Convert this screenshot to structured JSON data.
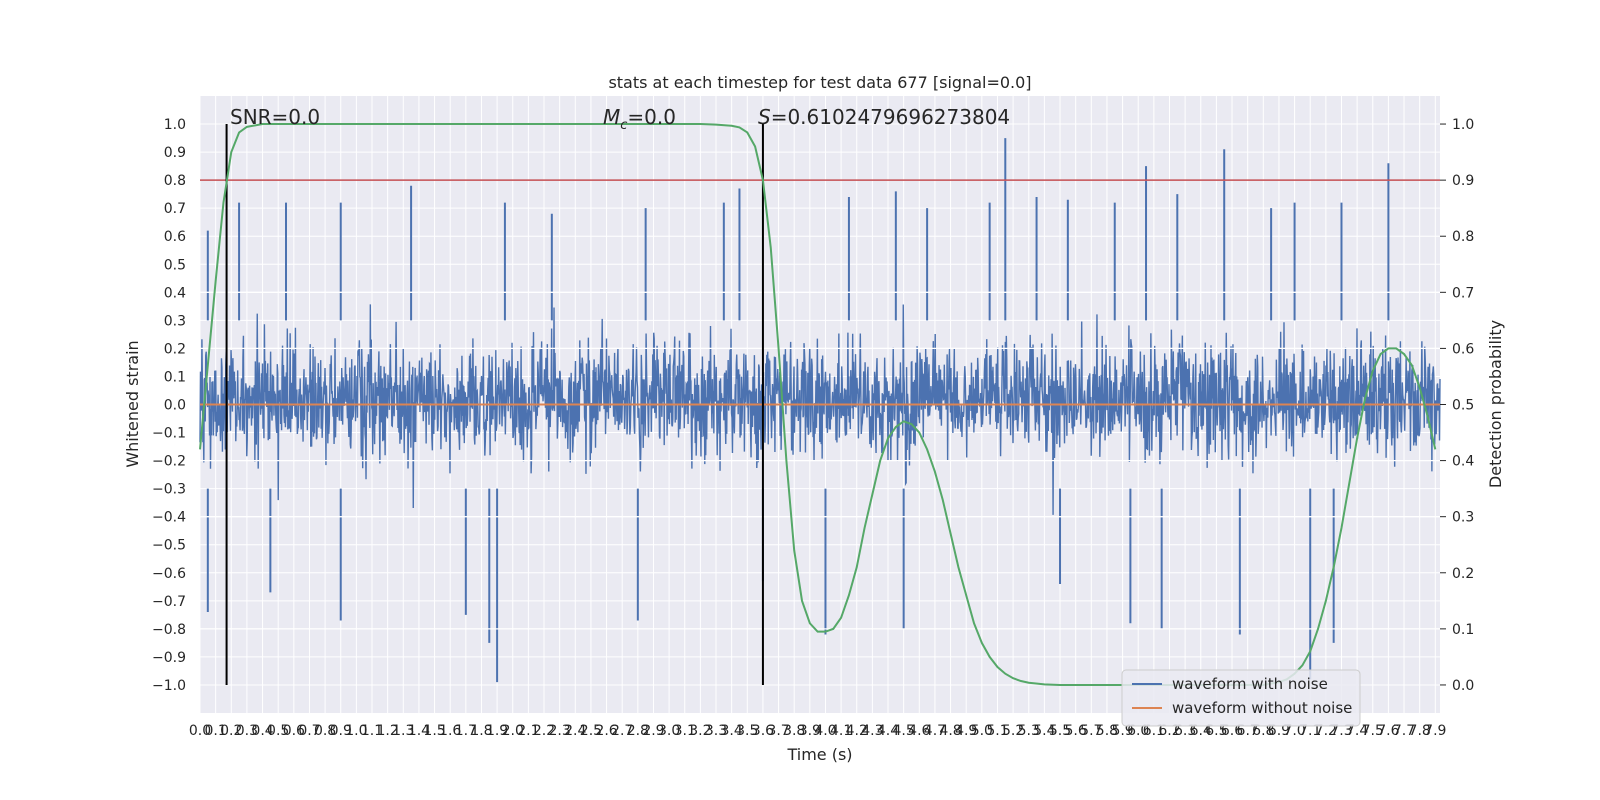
{
  "chart_data": {
    "type": "line",
    "title": "stats at each timestep for test data 677 [signal=0.0]",
    "xlabel": "Time (s)",
    "ylabel_left": "Whitened strain",
    "ylabel_right": "Detection probability",
    "xlim": [
      0,
      7.93
    ],
    "ylim_left": [
      -1.1,
      1.1
    ],
    "ylim_right": [
      -0.05,
      1.05
    ],
    "x_ticks": [
      0.0,
      0.1,
      0.2,
      0.3,
      0.4,
      0.5,
      0.6,
      0.7,
      0.8,
      0.9,
      1.0,
      1.1,
      1.2,
      1.3,
      1.4,
      1.5,
      1.6,
      1.7,
      1.8,
      1.9,
      2.0,
      2.1,
      2.2,
      2.3,
      2.4,
      2.5,
      2.6,
      2.7,
      2.8,
      2.9,
      3.0,
      3.1,
      3.2,
      3.3,
      3.4,
      3.5,
      3.6,
      3.7,
      3.8,
      3.9,
      4.0,
      4.1,
      4.2,
      4.3,
      4.4,
      4.5,
      4.6,
      4.7,
      4.8,
      4.9,
      5.0,
      5.1,
      5.2,
      5.3,
      5.4,
      5.5,
      5.6,
      5.7,
      5.8,
      5.9,
      6.0,
      6.1,
      6.2,
      6.3,
      6.4,
      6.5,
      6.6,
      6.7,
      6.8,
      6.9,
      7.0,
      7.1,
      7.2,
      7.3,
      7.4,
      7.5,
      7.6,
      7.7,
      7.8,
      7.9
    ],
    "y_ticks_left": [
      -1.0,
      -0.9,
      -0.8,
      -0.7,
      -0.6,
      -0.5,
      -0.4,
      -0.3,
      -0.2,
      -0.1,
      0.0,
      0.1,
      0.2,
      0.3,
      0.4,
      0.5,
      0.6,
      0.7,
      0.8,
      0.9,
      1.0
    ],
    "y_ticks_right": [
      0.0,
      0.1,
      0.2,
      0.3,
      0.4,
      0.5,
      0.6,
      0.7,
      0.8,
      0.9,
      1.0
    ],
    "series": [
      {
        "name": "waveform with noise",
        "color": "#4c72b0",
        "axis": "left",
        "kind": "dense noise (approx. envelope)",
        "envelope_typical": [
          -0.42,
          0.45
        ],
        "peaks_x": [
          0.05,
          0.25,
          0.55,
          0.9,
          1.35,
          1.95,
          2.25,
          2.85,
          3.35,
          3.45,
          4.15,
          4.45,
          4.65,
          5.05,
          5.15,
          5.35,
          5.55,
          5.85,
          6.05,
          6.25,
          6.55,
          6.85,
          7.0,
          7.3,
          7.6
        ],
        "peaks_y": [
          0.62,
          0.72,
          0.72,
          0.72,
          0.78,
          0.72,
          0.68,
          0.7,
          0.72,
          0.77,
          0.74,
          0.76,
          0.7,
          0.72,
          0.95,
          0.74,
          0.73,
          0.72,
          0.85,
          0.75,
          0.91,
          0.7,
          0.72,
          0.72,
          0.86
        ],
        "troughs_x": [
          0.05,
          0.45,
          0.9,
          1.7,
          1.85,
          1.9,
          2.8,
          3.6,
          4.0,
          4.5,
          5.5,
          5.95,
          6.15,
          6.65,
          7.1,
          7.25
        ],
        "troughs_y": [
          -0.74,
          -0.67,
          -0.77,
          -0.75,
          -0.85,
          -0.99,
          -0.77,
          -0.63,
          -0.82,
          -0.8,
          -0.64,
          -0.78,
          -0.8,
          -0.82,
          -0.98,
          -0.85
        ]
      },
      {
        "name": "waveform without noise",
        "color": "#dd8452",
        "axis": "left",
        "x": [
          0.0,
          7.93
        ],
        "y": [
          0.0,
          0.0
        ]
      },
      {
        "name": "",
        "color": "#55a868",
        "axis": "right",
        "x": [
          0.0,
          0.1,
          0.15,
          0.2,
          0.25,
          0.3,
          0.4,
          0.5,
          0.7,
          1.0,
          1.5,
          2.0,
          2.5,
          3.0,
          3.2,
          3.3,
          3.4,
          3.45,
          3.5,
          3.55,
          3.6,
          3.65,
          3.7,
          3.75,
          3.8,
          3.85,
          3.9,
          3.95,
          4.0,
          4.05,
          4.1,
          4.15,
          4.2,
          4.25,
          4.3,
          4.35,
          4.4,
          4.45,
          4.5,
          4.55,
          4.6,
          4.65,
          4.7,
          4.75,
          4.8,
          4.85,
          4.9,
          4.95,
          5.0,
          5.05,
          5.1,
          5.15,
          5.2,
          5.25,
          5.3,
          5.4,
          5.5,
          5.6,
          5.8,
          6.0,
          6.3,
          6.6,
          6.8,
          6.9,
          6.95,
          7.0,
          7.05,
          7.1,
          7.15,
          7.2,
          7.25,
          7.3,
          7.35,
          7.4,
          7.45,
          7.5,
          7.55,
          7.6,
          7.65,
          7.7,
          7.75,
          7.8,
          7.85,
          7.9
        ],
        "y": [
          0.42,
          0.72,
          0.86,
          0.95,
          0.985,
          0.995,
          1.0,
          1.0,
          1.0,
          1.0,
          1.0,
          1.0,
          1.0,
          1.0,
          1.0,
          0.999,
          0.997,
          0.994,
          0.985,
          0.96,
          0.9,
          0.78,
          0.6,
          0.4,
          0.24,
          0.15,
          0.11,
          0.095,
          0.095,
          0.1,
          0.12,
          0.16,
          0.21,
          0.28,
          0.34,
          0.4,
          0.44,
          0.46,
          0.47,
          0.465,
          0.45,
          0.42,
          0.38,
          0.33,
          0.27,
          0.21,
          0.16,
          0.11,
          0.075,
          0.05,
          0.032,
          0.02,
          0.012,
          0.007,
          0.004,
          0.001,
          0.0,
          0.0,
          0.0,
          0.0,
          0.0,
          0.0,
          0.0,
          0.005,
          0.01,
          0.02,
          0.035,
          0.06,
          0.1,
          0.15,
          0.21,
          0.28,
          0.36,
          0.44,
          0.51,
          0.56,
          0.59,
          0.6,
          0.6,
          0.59,
          0.57,
          0.53,
          0.48,
          0.42
        ]
      }
    ],
    "hlines": [
      {
        "y_right": 0.9,
        "color": "#c44e52"
      }
    ],
    "vlines": [
      {
        "x": 0.17,
        "color": "#000000"
      },
      {
        "x": 3.6,
        "color": "#000000"
      }
    ],
    "annotations": {
      "snr": "SNR=0.0",
      "mc_symbol": "M",
      "mc_sub": "c",
      "mc_value": "=0.0",
      "s_symbol": "S",
      "s_value": "=0.6102479696273804"
    },
    "legend": {
      "placement": "lower-right",
      "entries": [
        "waveform with noise",
        "waveform without noise"
      ]
    },
    "grid": true
  }
}
